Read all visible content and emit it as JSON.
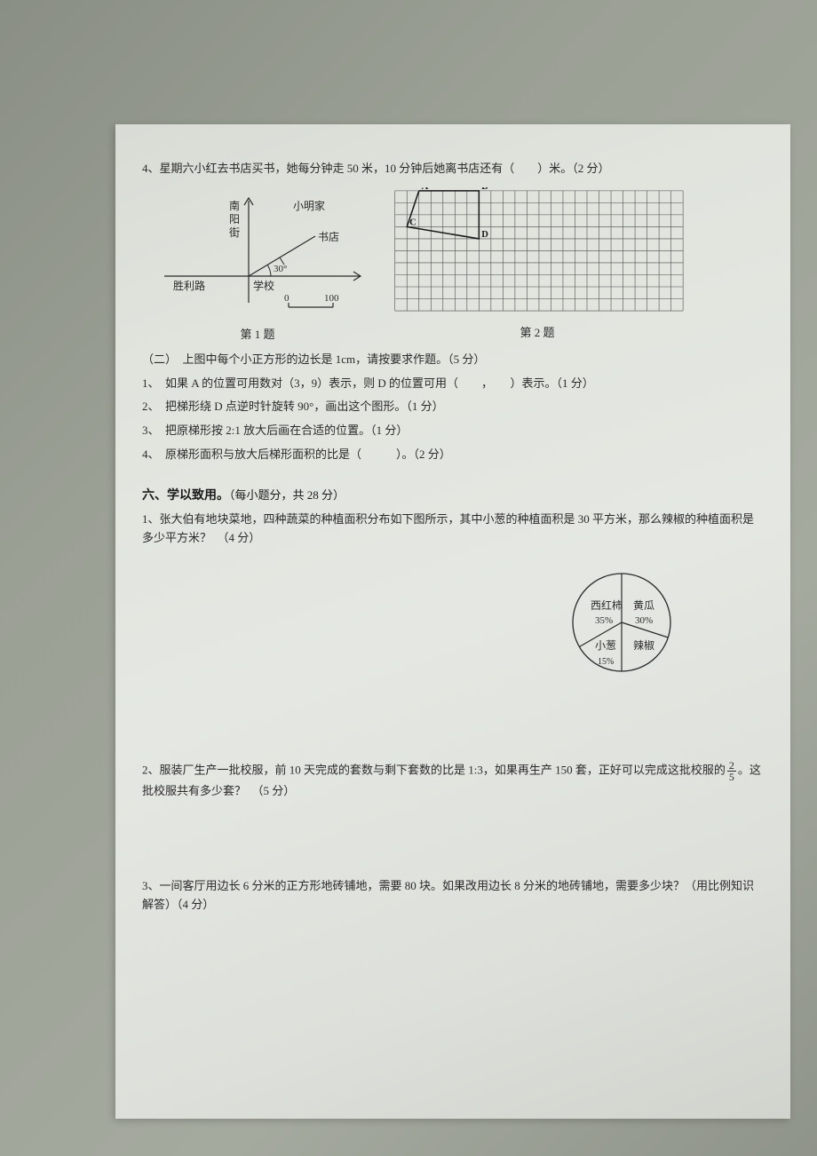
{
  "q4": {
    "text": "4、星期六小红去书店买书，她每分钟走 50 米，10 分钟后她离书店还有（　　）米。（2 分）"
  },
  "diagram1": {
    "labels": {
      "street_vert": "南阳街",
      "xiaoming": "小明家",
      "bookstore": "书店",
      "shengli": "胜利路",
      "school": "学校",
      "angle": "30°",
      "scale_0": "0",
      "scale_100": "100"
    },
    "caption": "第 1 题",
    "colors": {
      "line": "#2a2a2a",
      "text": "#2a2a2a"
    }
  },
  "diagram2": {
    "grid": {
      "cols": 24,
      "rows": 10,
      "cell": 14
    },
    "points": {
      "A": {
        "col": 2,
        "row": 0,
        "label": "A"
      },
      "B": {
        "col": 7,
        "row": 0,
        "label": "B"
      },
      "C": {
        "col": 1,
        "row": 3,
        "label": "C"
      },
      "D": {
        "col": 7,
        "row": 4,
        "label": "D"
      }
    },
    "caption": "第 2 题",
    "colors": {
      "grid": "#4a4a4a",
      "line": "#1a1a1a",
      "text": "#1a1a1a"
    }
  },
  "section2": {
    "intro": "（二）　上图中每个小正方形的边长是 1cm，请按要求作题。（5 分）",
    "items": [
      "1、　如果 A 的位置可用数对（3，9）表示，则 D 的位置可用（　　，　　）表示。（1 分）",
      "2、　把梯形绕 D 点逆时针旋转 90°，画出这个图形。（1 分）",
      "3、　把原梯形按 2:1 放大后画在合适的位置。（1 分）",
      "4、　原梯形面积与放大后梯形面积的比是（　　　）。（2 分）"
    ]
  },
  "section6": {
    "title": "六、学以致用。",
    "title_suffix": "（每小题分，共 28 分）",
    "q1": {
      "text": "1、张大伯有地块菜地，四种蔬菜的种植面积分布如下图所示，其中小葱的种植面积是 30 平方米，那么辣椒的种植面积是多少平方米？　（4 分）"
    },
    "pie": {
      "slices": [
        {
          "label": "西红柿",
          "pct": "35%",
          "start": 180,
          "end": 306
        },
        {
          "label": "黄瓜",
          "pct": "30%",
          "start": 306,
          "end": 54
        },
        {
          "label": "辣椒",
          "pct": "",
          "start": 54,
          "end": 126
        },
        {
          "label": "小葱",
          "pct": "15%",
          "start": 126,
          "end": 180
        }
      ],
      "colors": {
        "line": "#2a2a2a",
        "fill": "none",
        "text": "#2a2a2a"
      },
      "radius": 55
    },
    "q2": {
      "prefix": "2、服装厂生产一批校服，前 10 天完成的套数与剩下套数的比是 1:3，如果再生产 150 套，正好可以完成这批校服的",
      "frac_num": "2",
      "frac_den": "5",
      "suffix": "。这批校服共有多少套？　（5 分）"
    },
    "q3": {
      "text": "3、一间客厅用边长 6 分米的正方形地砖铺地，需要 80 块。如果改用边长 8 分米的地砖铺地，需要多少块？（用比例知识解答）（4 分）"
    }
  }
}
